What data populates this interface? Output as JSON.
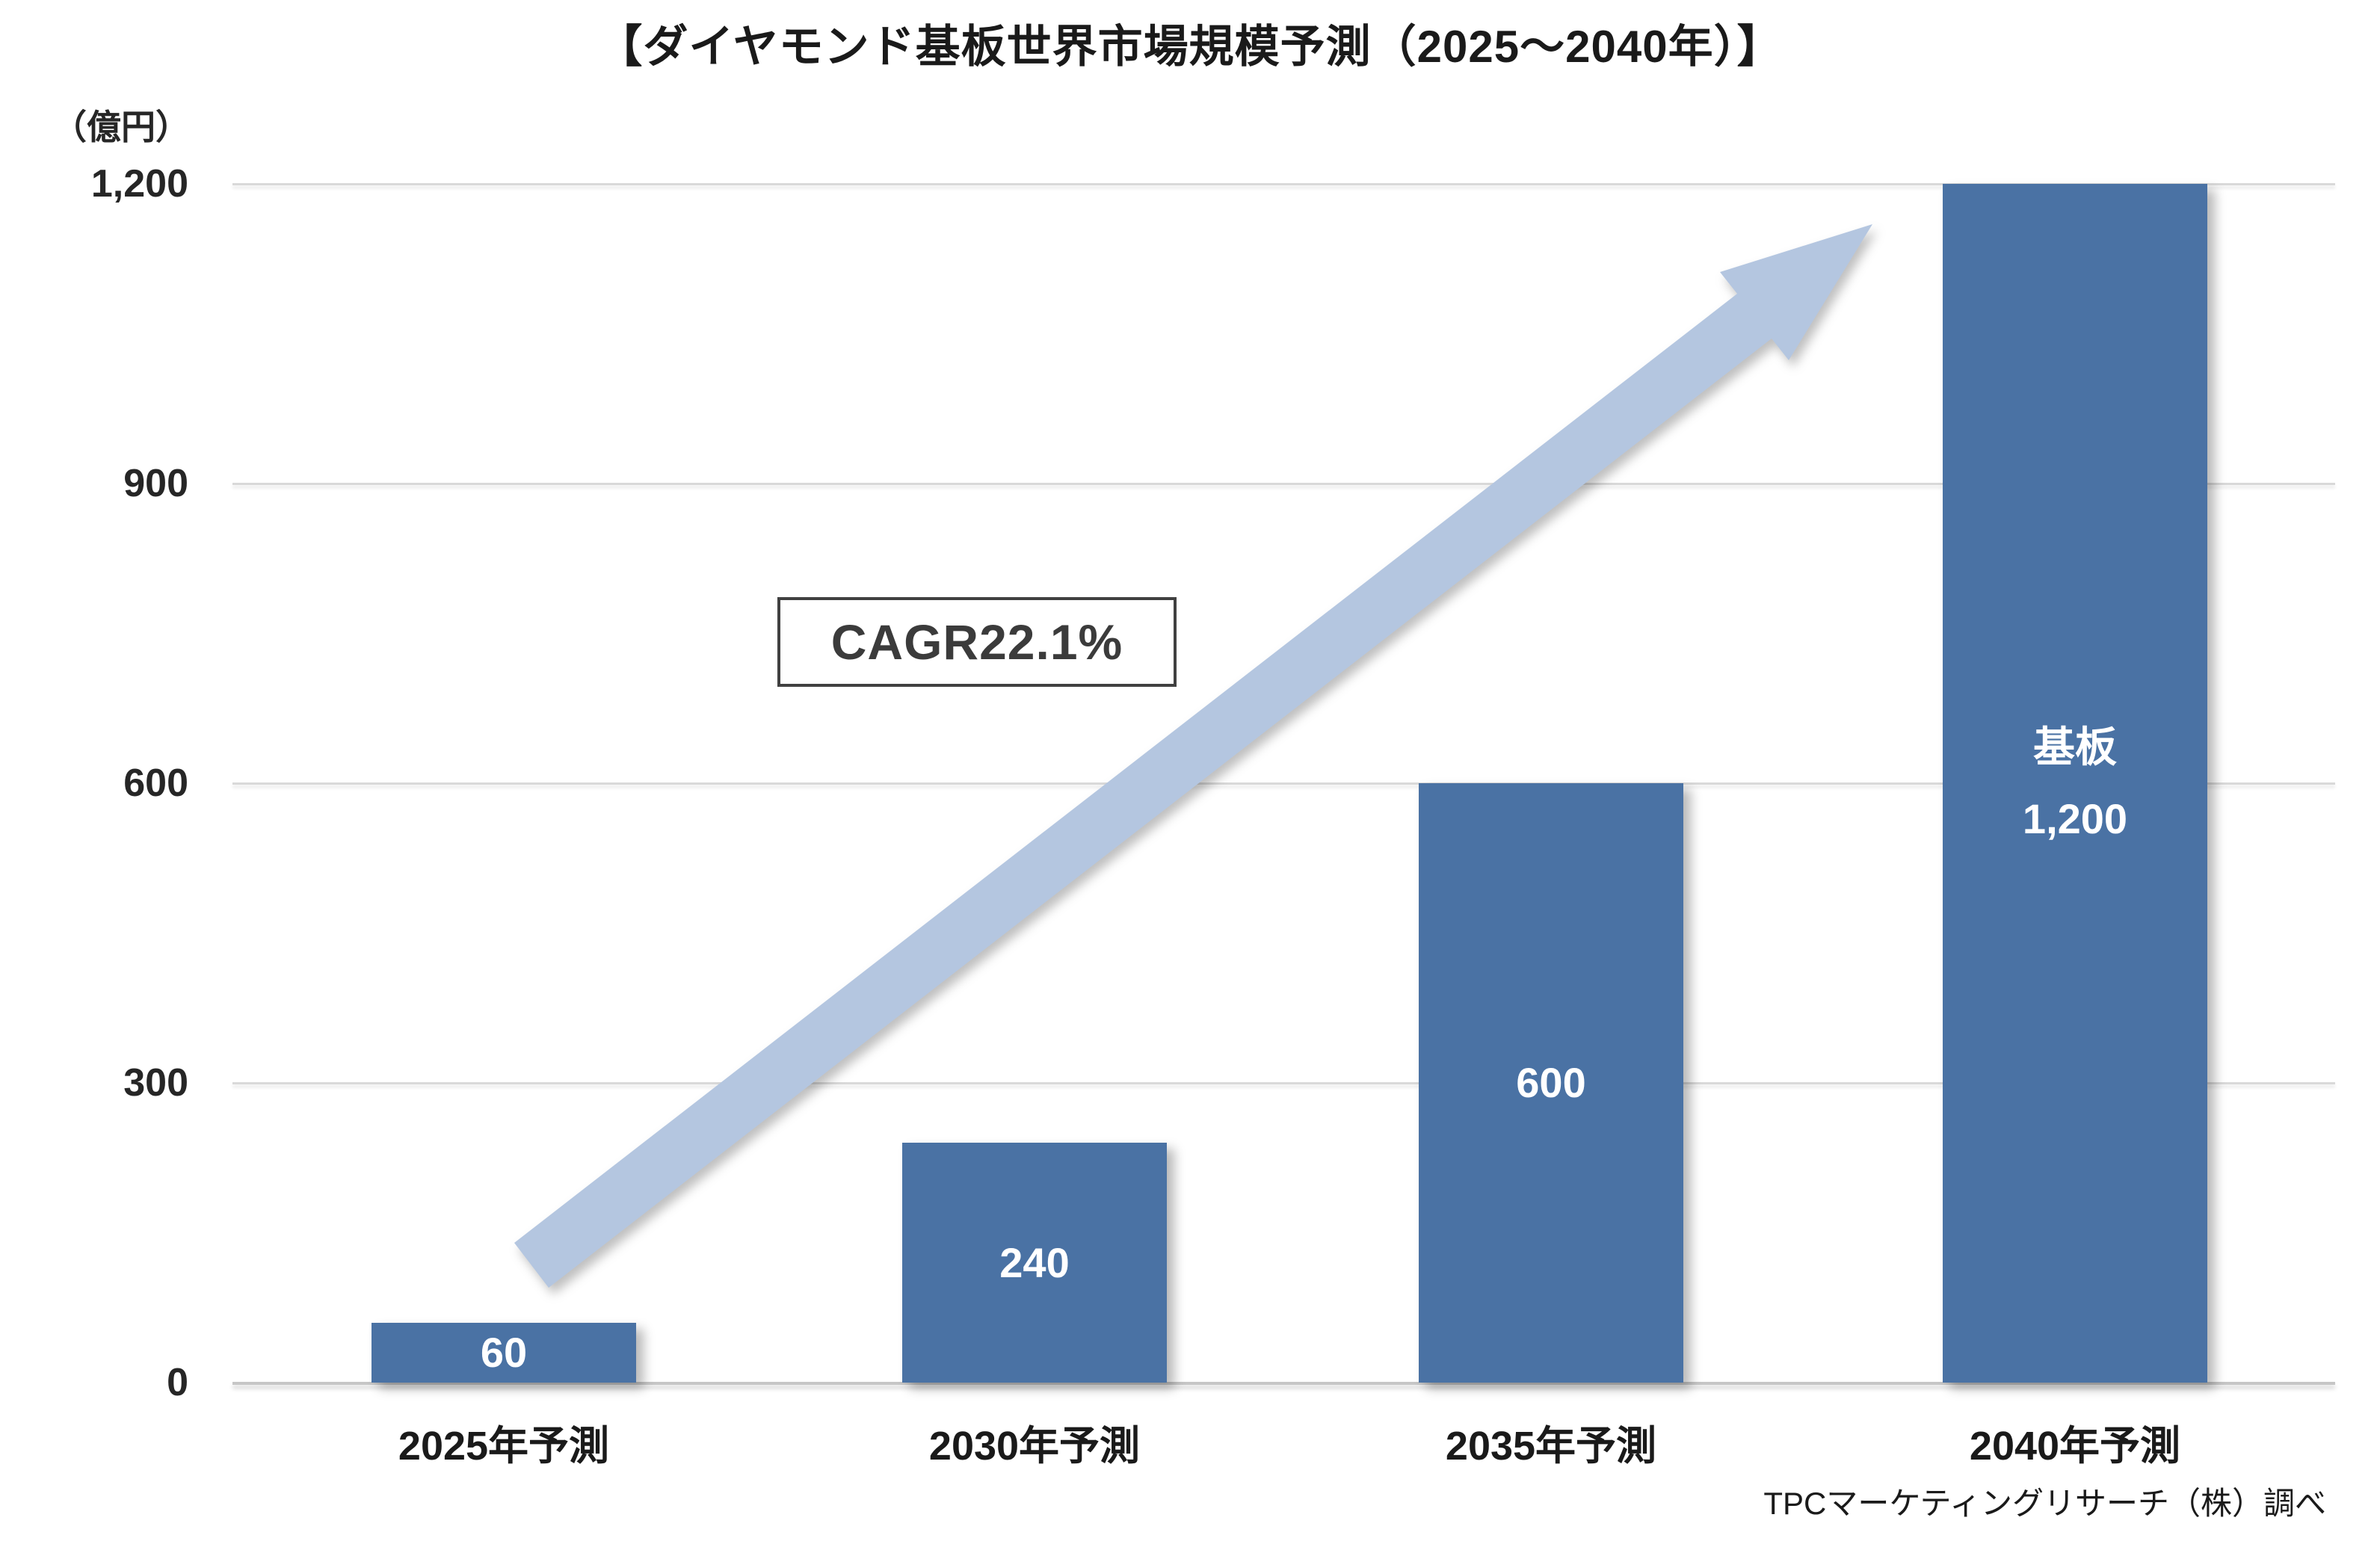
{
  "chart_data": {
    "type": "bar",
    "title": "【ダイヤモンド基板世界市場規模予測（2025～2040年）】",
    "unit_label": "（億円）",
    "categories": [
      "2025年予測",
      "2030年予測",
      "2035年予測",
      "2040年予測"
    ],
    "values": [
      60,
      240,
      600,
      1200
    ],
    "value_labels": [
      "60",
      "240",
      "600",
      "1,200"
    ],
    "series_name": "基板",
    "series_name_shown_on_category": "2040年予測",
    "y_ticks": [
      {
        "value": 0,
        "label": "0"
      },
      {
        "value": 300,
        "label": "300"
      },
      {
        "value": 600,
        "label": "600"
      },
      {
        "value": 900,
        "label": "900"
      },
      {
        "value": 1200,
        "label": "1,200"
      }
    ],
    "ylim": [
      0,
      1200
    ],
    "grid": "horizontal",
    "legend": "none",
    "annotations": {
      "cagr_label": "CAGR22.1%",
      "arrow": "light-blue block arrow rising from above the 2025 bar to the top of the 2040 bar"
    },
    "source": "TPCマーケティングリサーチ（株）調べ",
    "colors": {
      "bar": "#4A72A4",
      "arrow": "#B4C6E0",
      "grid": "#D9D9D9",
      "baseline": "#C6C6C6",
      "value_label": "#FFFFFF",
      "text": "#1A1A1A",
      "cagr_border": "#404040",
      "cagr_text": "#3B3B3B"
    }
  }
}
